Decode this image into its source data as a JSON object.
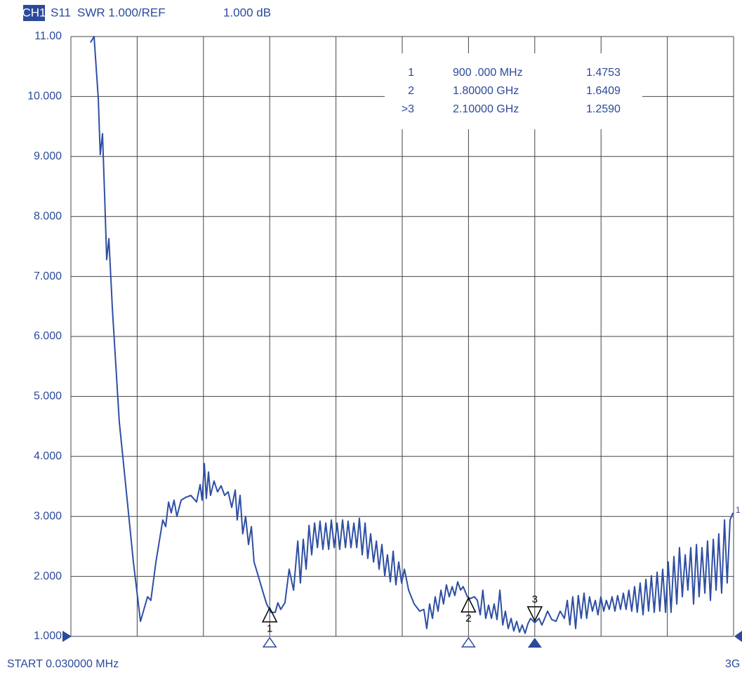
{
  "chart_data": {
    "type": "line",
    "header": {
      "channel": "CH1",
      "parameter": "S11",
      "format": "SWR 1.000/REF",
      "scale": "1.000 dB"
    },
    "x_start_label": "START 0.030000 MHz",
    "x_stop_label": "3G",
    "trace_end_label": "1",
    "xlim": [
      0.03,
      3000
    ],
    "xticks": [
      0.03,
      300,
      600,
      900,
      1200,
      1500,
      1800,
      2100,
      2400,
      2700,
      3000
    ],
    "ylim": [
      1,
      11
    ],
    "yticks": [
      {
        "value": 1,
        "label": "1.000"
      },
      {
        "value": 2,
        "label": "2.000"
      },
      {
        "value": 3,
        "label": "3.000"
      },
      {
        "value": 4,
        "label": "4.000"
      },
      {
        "value": 5,
        "label": "5.000"
      },
      {
        "value": 6,
        "label": "6.000"
      },
      {
        "value": 7,
        "label": "7.000"
      },
      {
        "value": 8,
        "label": "8.000"
      },
      {
        "value": 9,
        "label": "9.000"
      },
      {
        "value": 10,
        "label": "10.000"
      },
      {
        "value": 11,
        "label": "11.00"
      }
    ],
    "grid": true,
    "series": [
      {
        "name": "S11",
        "color": "#2f4fa3",
        "x": [
          89,
          105,
          124,
          133,
          143,
          153,
          162,
          172,
          188,
          219,
          251,
          283,
          315,
          347,
          362,
          385,
          416,
          429,
          442,
          454,
          467,
          480,
          499,
          521,
          543,
          569,
          585,
          594,
          604,
          613,
          623,
          632,
          648,
          664,
          680,
          696,
          712,
          728,
          744,
          753,
          766,
          778,
          791,
          804,
          817,
          829,
          848,
          867,
          886,
          906,
          925,
          937,
          950,
          969,
          988,
          1008,
          1027,
          1039,
          1052,
          1065,
          1078,
          1090,
          1103,
          1116,
          1128,
          1141,
          1154,
          1167,
          1179,
          1192,
          1205,
          1217,
          1230,
          1243,
          1255,
          1268,
          1281,
          1294,
          1306,
          1319,
          1332,
          1344,
          1357,
          1370,
          1383,
          1395,
          1408,
          1421,
          1433,
          1446,
          1459,
          1471,
          1484,
          1497,
          1510,
          1529,
          1554,
          1579,
          1598,
          1611,
          1624,
          1637,
          1649,
          1662,
          1675,
          1687,
          1700,
          1713,
          1726,
          1738,
          1751,
          1764,
          1776,
          1795,
          1808,
          1827,
          1840,
          1853,
          1865,
          1878,
          1891,
          1904,
          1916,
          1929,
          1942,
          1955,
          1967,
          1980,
          1993,
          2005,
          2018,
          2031,
          2043,
          2056,
          2069,
          2081,
          2100,
          2119,
          2132,
          2145,
          2158,
          2177,
          2196,
          2215,
          2234,
          2247,
          2259,
          2272,
          2285,
          2297,
          2310,
          2323,
          2335,
          2348,
          2361,
          2374,
          2386,
          2399,
          2412,
          2424,
          2437,
          2450,
          2463,
          2475,
          2488,
          2501,
          2513,
          2526,
          2539,
          2552,
          2564,
          2577,
          2590,
          2603,
          2615,
          2628,
          2641,
          2654,
          2666,
          2679,
          2692,
          2704,
          2717,
          2730,
          2743,
          2755,
          2768,
          2781,
          2793,
          2806,
          2819,
          2832,
          2844,
          2857,
          2870,
          2882,
          2895,
          2908,
          2921,
          2933,
          2946,
          2959,
          2971,
          2984,
          2997
        ],
        "values": [
          10.9,
          11.0,
          9.97,
          9.03,
          9.38,
          8.33,
          7.28,
          7.63,
          6.46,
          4.58,
          3.41,
          2.24,
          1.25,
          1.66,
          1.6,
          2.24,
          2.94,
          2.83,
          3.24,
          3.06,
          3.27,
          3.0,
          3.27,
          3.32,
          3.35,
          3.24,
          3.53,
          3.27,
          3.88,
          3.3,
          3.74,
          3.35,
          3.59,
          3.41,
          3.51,
          3.35,
          3.41,
          3.15,
          3.44,
          2.94,
          3.35,
          2.71,
          3.0,
          2.53,
          2.83,
          2.24,
          2.01,
          1.77,
          1.54,
          1.4,
          1.4,
          1.56,
          1.45,
          1.56,
          2.12,
          1.77,
          2.59,
          1.89,
          2.62,
          2.12,
          2.85,
          2.36,
          2.89,
          2.48,
          2.92,
          2.45,
          2.89,
          2.45,
          2.94,
          2.48,
          2.89,
          2.45,
          2.94,
          2.48,
          2.92,
          2.48,
          2.89,
          2.48,
          2.97,
          2.36,
          2.89,
          2.3,
          2.71,
          2.24,
          2.59,
          2.12,
          2.53,
          2.01,
          2.36,
          1.91,
          2.42,
          1.86,
          2.24,
          1.89,
          2.12,
          1.77,
          1.54,
          1.42,
          1.45,
          1.13,
          1.54,
          1.3,
          1.66,
          1.42,
          1.77,
          1.54,
          1.86,
          1.66,
          1.83,
          1.68,
          1.91,
          1.77,
          1.83,
          1.66,
          1.63,
          1.66,
          1.6,
          1.36,
          1.77,
          1.3,
          1.52,
          1.3,
          1.54,
          1.28,
          1.77,
          1.19,
          1.42,
          1.13,
          1.3,
          1.09,
          1.25,
          1.07,
          1.19,
          1.05,
          1.21,
          1.3,
          1.23,
          1.3,
          1.19,
          1.3,
          1.42,
          1.28,
          1.25,
          1.42,
          1.3,
          1.6,
          1.19,
          1.66,
          1.13,
          1.68,
          1.3,
          1.72,
          1.3,
          1.66,
          1.42,
          1.6,
          1.36,
          1.66,
          1.42,
          1.6,
          1.45,
          1.66,
          1.42,
          1.68,
          1.45,
          1.72,
          1.45,
          1.77,
          1.42,
          1.83,
          1.4,
          1.89,
          1.36,
          1.95,
          1.42,
          2.01,
          1.4,
          2.07,
          1.42,
          2.12,
          1.4,
          2.24,
          1.4,
          2.33,
          1.54,
          2.48,
          1.66,
          2.36,
          1.77,
          2.48,
          1.54,
          2.53,
          1.66,
          2.48,
          1.72,
          2.59,
          1.6,
          2.62,
          1.77,
          2.71,
          1.72,
          2.94,
          1.89,
          2.94,
          3.06
        ]
      }
    ],
    "markers": [
      {
        "name": "1",
        "table_label": "1",
        "x": 900,
        "x_label": "900 .000 MHz",
        "value": 1.4753
      },
      {
        "name": "2",
        "table_label": "2",
        "x": 1800,
        "x_label": "1.80000 GHz",
        "value": 1.6409
      },
      {
        "name": "3",
        "table_label": ">3",
        "x": 2100,
        "x_label": "2.10000 GHz",
        "value": 1.259,
        "value_label": "1.2590",
        "active": true
      }
    ]
  }
}
